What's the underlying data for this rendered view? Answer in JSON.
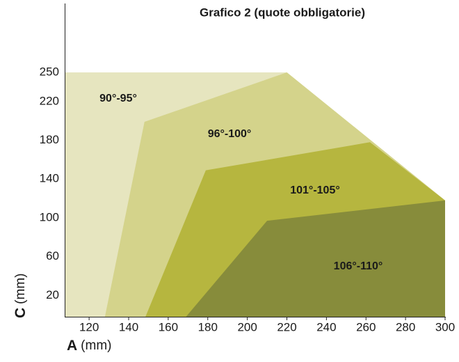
{
  "chart_data": {
    "type": "region",
    "title": "Grafico 2 (quote obbligatorie)",
    "x_label": {
      "letter": "A",
      "unit": "(mm)"
    },
    "y_label": {
      "letter": "C",
      "unit": "(mm)"
    },
    "xlim": [
      108,
      300
    ],
    "ylim": [
      -2,
      250
    ],
    "xticks": [
      120,
      140,
      160,
      180,
      200,
      220,
      240,
      260,
      280,
      300
    ],
    "yticks": [
      20,
      60,
      100,
      140,
      180,
      220,
      250
    ],
    "series": [
      {
        "name": "90°-95°",
        "color": "#e6e5bf",
        "x": [
          108,
          108,
          220,
          300,
          300
        ],
        "y": [
          -2,
          250,
          250,
          118,
          -2
        ]
      },
      {
        "name": "96°-100°",
        "color": "#d4d38b",
        "x": [
          128,
          148,
          220,
          300,
          300
        ],
        "y": [
          -2,
          199,
          250,
          118,
          -2
        ]
      },
      {
        "name": "101°-105°",
        "color": "#b6b63f",
        "x": [
          148.5,
          179,
          262,
          300,
          300
        ],
        "y": [
          -2,
          149,
          178,
          118,
          -2
        ]
      },
      {
        "name": "106°-110°",
        "color": "#878c3b",
        "x": [
          169,
          210,
          300,
          300
        ],
        "y": [
          -2,
          97,
          118,
          -2
        ]
      }
    ]
  }
}
